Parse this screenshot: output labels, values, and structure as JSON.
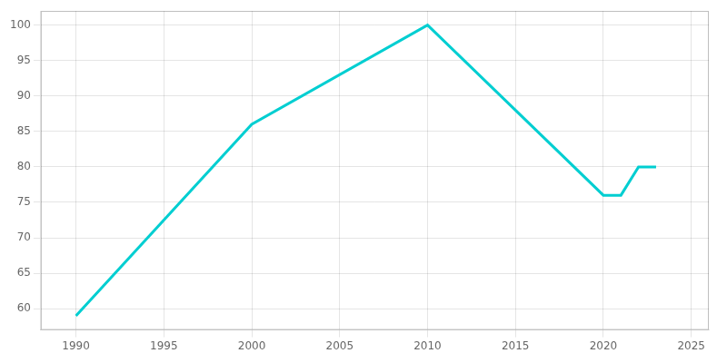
{
  "chart_data": {
    "type": "line",
    "x": [
      1990,
      2000,
      2010,
      2020,
      2021,
      2022,
      2023
    ],
    "values": [
      59,
      86,
      100,
      76,
      76,
      80,
      80
    ],
    "color": "#00CED1",
    "xlim": [
      1988,
      2026
    ],
    "ylim": [
      57,
      102
    ],
    "xticks": [
      1990,
      1995,
      2000,
      2005,
      2010,
      2015,
      2020,
      2025
    ],
    "yticks": [
      60,
      65,
      70,
      75,
      80,
      85,
      90,
      95,
      100
    ],
    "grid": true
  }
}
